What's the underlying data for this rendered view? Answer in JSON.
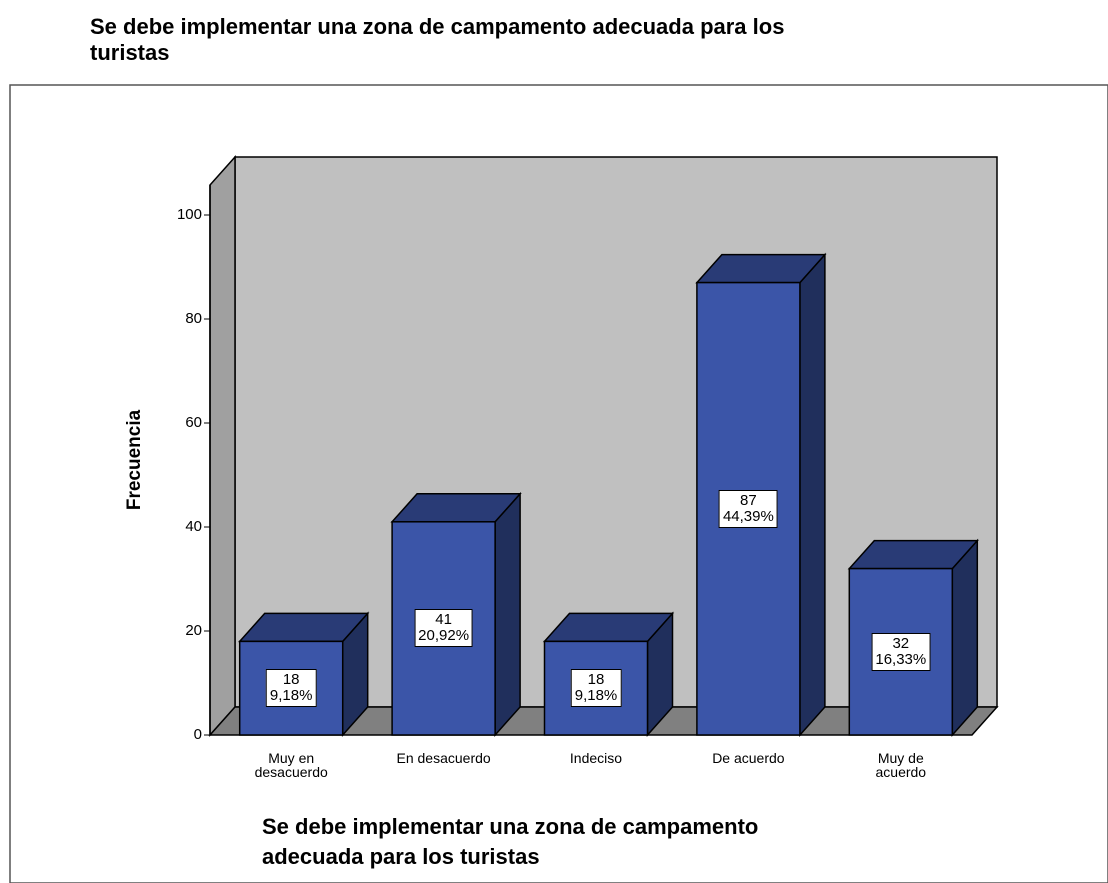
{
  "chart_data": {
    "type": "bar3d",
    "title": "Se debe implementar una zona de campamento adecuada para los\nturistas",
    "x_label": "Se debe implementar una zona de campamento\nadecuada para los turistas",
    "y_label": "Frecuencia",
    "categories": [
      "Muy en\ndesacuerdo",
      "En desacuerdo",
      "Indeciso",
      "De acuerdo",
      "Muy de\nacuerdo"
    ],
    "values": [
      18,
      41,
      18,
      87,
      32
    ],
    "value_labels": [
      "18\n9,18%",
      "41\n20,92%",
      "18\n9,18%",
      "87\n44,39%",
      "32\n16,33%"
    ],
    "color": "#3b55a8",
    "ylim": [
      0,
      100
    ],
    "yticks": [
      0,
      20,
      40,
      60,
      80,
      100
    ]
  }
}
